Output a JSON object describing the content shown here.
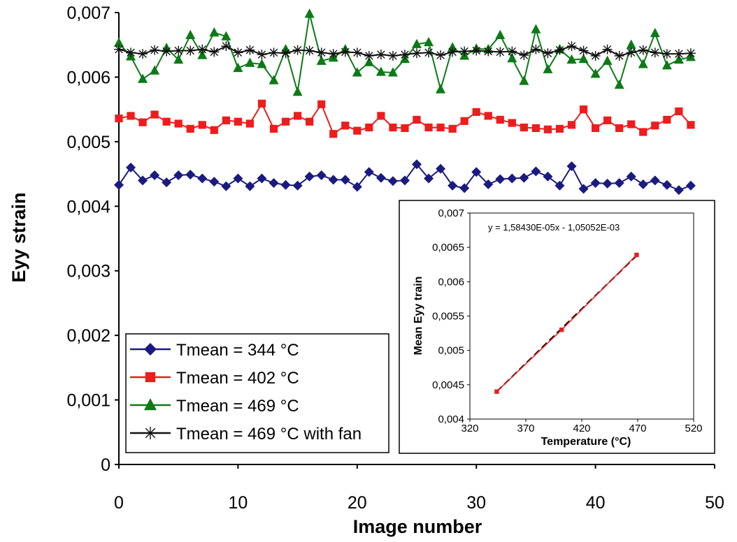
{
  "chart_data": [
    {
      "type": "line",
      "xlabel": "Image number",
      "ylabel": "Eyy strain",
      "xlim": [
        0,
        50
      ],
      "ylim": [
        0,
        0.007
      ],
      "x_ticks": [
        "0",
        "10",
        "20",
        "30",
        "40",
        "50"
      ],
      "y_ticks": [
        "0",
        "0,001",
        "0,002",
        "0,003",
        "0,004",
        "0,005",
        "0,006",
        "0,007"
      ],
      "grid": false,
      "legend_position": "bottom-left",
      "x": [
        0,
        1,
        2,
        3,
        4,
        5,
        6,
        7,
        8,
        9,
        10,
        11,
        12,
        13,
        14,
        15,
        16,
        17,
        18,
        19,
        20,
        21,
        22,
        23,
        24,
        25,
        26,
        27,
        28,
        29,
        30,
        31,
        32,
        33,
        34,
        35,
        36,
        37,
        38,
        39,
        40,
        41,
        42,
        43,
        44,
        45,
        46,
        47,
        48
      ],
      "series": [
        {
          "name": "Tmean = 344 °C",
          "color": "#1a1a80",
          "marker": "diamond",
          "values": [
            0.00433,
            0.0046,
            0.0044,
            0.00448,
            0.00437,
            0.00448,
            0.00449,
            0.00443,
            0.00438,
            0.00431,
            0.00443,
            0.00431,
            0.00443,
            0.00436,
            0.00433,
            0.00432,
            0.00446,
            0.00448,
            0.00441,
            0.00441,
            0.0043,
            0.00453,
            0.00444,
            0.00439,
            0.0044,
            0.00465,
            0.00443,
            0.00458,
            0.00432,
            0.00428,
            0.00453,
            0.00434,
            0.00442,
            0.00443,
            0.00444,
            0.00454,
            0.00446,
            0.00432,
            0.00462,
            0.00427,
            0.00436,
            0.00435,
            0.00436,
            0.00446,
            0.00434,
            0.0044,
            0.00433,
            0.00425,
            0.00432
          ]
        },
        {
          "name": "Tmean = 402 °C",
          "color": "#ee1c1c",
          "marker": "square",
          "values": [
            0.00536,
            0.0054,
            0.0053,
            0.00542,
            0.00531,
            0.00528,
            0.0052,
            0.00526,
            0.00518,
            0.00533,
            0.00531,
            0.00528,
            0.00559,
            0.0052,
            0.00531,
            0.0054,
            0.00531,
            0.00558,
            0.00512,
            0.00525,
            0.00517,
            0.00522,
            0.0054,
            0.00522,
            0.00521,
            0.00534,
            0.00522,
            0.00522,
            0.0052,
            0.00532,
            0.00546,
            0.0054,
            0.00534,
            0.00529,
            0.00522,
            0.00521,
            0.00519,
            0.0052,
            0.00526,
            0.0055,
            0.00521,
            0.00533,
            0.00521,
            0.00527,
            0.00515,
            0.00525,
            0.00534,
            0.00547,
            0.00526
          ]
        },
        {
          "name": "Tmean = 469 °C",
          "color": "#0c7a16",
          "marker": "triangle",
          "values": [
            0.00653,
            0.00632,
            0.00597,
            0.0061,
            0.00645,
            0.00627,
            0.00665,
            0.00634,
            0.00669,
            0.00663,
            0.00614,
            0.00622,
            0.0062,
            0.00595,
            0.00643,
            0.00577,
            0.00698,
            0.00625,
            0.0063,
            0.00643,
            0.00607,
            0.00623,
            0.00608,
            0.00607,
            0.00628,
            0.00651,
            0.00654,
            0.00581,
            0.00646,
            0.00633,
            0.00644,
            0.00643,
            0.00665,
            0.00629,
            0.00594,
            0.00674,
            0.00612,
            0.00643,
            0.00627,
            0.00628,
            0.00605,
            0.00625,
            0.00588,
            0.0065,
            0.0062,
            0.00668,
            0.00618,
            0.00627,
            0.00631
          ]
        },
        {
          "name": "Tmean = 469 °C with fan",
          "color": "#111111",
          "marker": "star",
          "values": [
            0.00643,
            0.00638,
            0.00636,
            0.00642,
            0.0064,
            0.00641,
            0.00641,
            0.00643,
            0.00639,
            0.00648,
            0.00638,
            0.00642,
            0.00635,
            0.00638,
            0.00637,
            0.00642,
            0.00641,
            0.00638,
            0.00636,
            0.00639,
            0.00638,
            0.00633,
            0.00635,
            0.00633,
            0.00635,
            0.00637,
            0.00638,
            0.00634,
            0.00639,
            0.0064,
            0.00641,
            0.0064,
            0.00639,
            0.0064,
            0.00634,
            0.00643,
            0.00637,
            0.00642,
            0.00648,
            0.00641,
            0.00633,
            0.00643,
            0.00633,
            0.00638,
            0.00642,
            0.00638,
            0.00636,
            0.00636,
            0.00637
          ]
        }
      ]
    },
    {
      "type": "line",
      "xlabel": "Temperature (°C)",
      "ylabel": "Mean Eyy train",
      "xlim": [
        320,
        520
      ],
      "ylim": [
        0.004,
        0.007
      ],
      "x_ticks": [
        "320",
        "370",
        "420",
        "470",
        "520"
      ],
      "y_ticks": [
        "0,004",
        "0,0045",
        "0,005",
        "0,0055",
        "0,006",
        "0,0065",
        "0,007"
      ],
      "annotation": "y = 1,58430E-05x - 1,05052E-03",
      "fit": {
        "slope": 1.5843e-05,
        "intercept": -0.00105052
      },
      "series": [
        {
          "color": "#ee1c1c",
          "marker": "square",
          "x": [
            344,
            402,
            469
          ],
          "values": [
            0.0044,
            0.0053,
            0.00639
          ]
        }
      ]
    }
  ]
}
